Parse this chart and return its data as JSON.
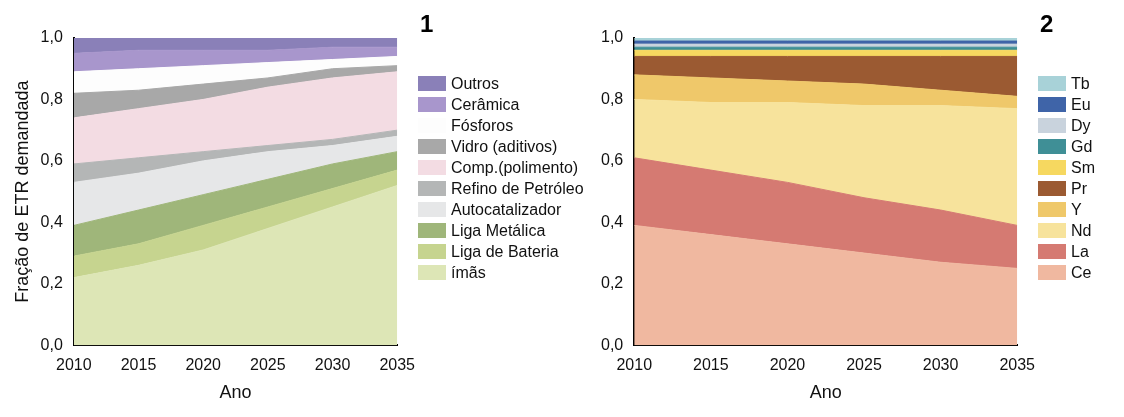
{
  "chart_data": [
    {
      "type": "area",
      "title": "1",
      "xlabel": "Ano",
      "ylabel": "Fração de ETR demandada",
      "stacked": true,
      "legend": "right",
      "grid": false,
      "x": [
        2010,
        2015,
        2020,
        2025,
        2030,
        2035
      ],
      "xlim": [
        2010,
        2035
      ],
      "xticks": [
        2010,
        2015,
        2020,
        2025,
        2030,
        2035
      ],
      "ylim": [
        0,
        1
      ],
      "yticks": [
        {
          "value": 0,
          "label": "0,0"
        },
        {
          "value": 0.2,
          "label": "0,2"
        },
        {
          "value": 0.4,
          "label": "0,4"
        },
        {
          "value": 0.6,
          "label": "0,6"
        },
        {
          "value": 0.8,
          "label": "0,8"
        },
        {
          "value": 1,
          "label": "1,0"
        }
      ],
      "series": [
        {
          "name": "ímãs",
          "color": "#dde6b6",
          "values": [
            0.22,
            0.26,
            0.31,
            0.38,
            0.45,
            0.52
          ]
        },
        {
          "name": "Liga de Bateria",
          "color": "#c6d48f",
          "values": [
            0.07,
            0.07,
            0.08,
            0.07,
            0.06,
            0.05
          ]
        },
        {
          "name": "Liga Metálica",
          "color": "#9fb67a",
          "values": [
            0.1,
            0.11,
            0.1,
            0.09,
            0.08,
            0.06
          ]
        },
        {
          "name": "Autocatalizador",
          "color": "#e6e7e8",
          "values": [
            0.14,
            0.12,
            0.11,
            0.09,
            0.06,
            0.05
          ]
        },
        {
          "name": "Refino de Petróleo",
          "color": "#b4b6b6",
          "values": [
            0.06,
            0.05,
            0.03,
            0.02,
            0.02,
            0.02
          ]
        },
        {
          "name": "Comp.(polimento)",
          "color": "#f3dce3",
          "values": [
            0.15,
            0.16,
            0.17,
            0.19,
            0.2,
            0.19
          ]
        },
        {
          "name": "Vidro (aditivos)",
          "color": "#a8a8a8",
          "values": [
            0.08,
            0.06,
            0.05,
            0.03,
            0.03,
            0.02
          ]
        },
        {
          "name": "Fósforos",
          "color": "#fdfdfd",
          "values": [
            0.07,
            0.07,
            0.06,
            0.05,
            0.03,
            0.03
          ]
        },
        {
          "name": "Cerâmica",
          "color": "#a896cc",
          "values": [
            0.06,
            0.06,
            0.05,
            0.04,
            0.04,
            0.03
          ]
        },
        {
          "name": "Outros",
          "color": "#8a80b8",
          "values": [
            0.05,
            0.04,
            0.04,
            0.04,
            0.03,
            0.03
          ]
        }
      ]
    },
    {
      "type": "area",
      "title": "2",
      "xlabel": "Ano",
      "stacked": true,
      "legend": "right",
      "grid": false,
      "x": [
        2010,
        2015,
        2020,
        2025,
        2030,
        2035
      ],
      "xlim": [
        2010,
        2035
      ],
      "xticks": [
        2010,
        2015,
        2020,
        2025,
        2030,
        2035
      ],
      "ylim": [
        0,
        1
      ],
      "yticks": [
        {
          "value": 0,
          "label": "0,0"
        },
        {
          "value": 0.2,
          "label": "0,2"
        },
        {
          "value": 0.4,
          "label": "0,4"
        },
        {
          "value": 0.6,
          "label": "0,6"
        },
        {
          "value": 0.8,
          "label": "0,8"
        },
        {
          "value": 1,
          "label": "1,0"
        }
      ],
      "series": [
        {
          "name": "Ce",
          "color": "#f0b8a0",
          "values": [
            0.39,
            0.36,
            0.33,
            0.3,
            0.27,
            0.25
          ]
        },
        {
          "name": "La",
          "color": "#d57a72",
          "values": [
            0.22,
            0.21,
            0.2,
            0.18,
            0.17,
            0.14
          ]
        },
        {
          "name": "Nd",
          "color": "#f7e39c",
          "values": [
            0.19,
            0.22,
            0.26,
            0.3,
            0.34,
            0.38
          ]
        },
        {
          "name": "Y",
          "color": "#efc86a",
          "values": [
            0.08,
            0.08,
            0.07,
            0.07,
            0.05,
            0.04
          ]
        },
        {
          "name": "Pr",
          "color": "#9b5a32",
          "values": [
            0.06,
            0.07,
            0.08,
            0.09,
            0.11,
            0.13
          ]
        },
        {
          "name": "Sm",
          "color": "#f6d860",
          "values": [
            0.02,
            0.02,
            0.02,
            0.02,
            0.02,
            0.02
          ]
        },
        {
          "name": "Gd",
          "color": "#3f8f96",
          "values": [
            0.01,
            0.01,
            0.01,
            0.01,
            0.01,
            0.01
          ]
        },
        {
          "name": "Dy",
          "color": "#c9d3dd",
          "values": [
            0.01,
            0.01,
            0.01,
            0.01,
            0.01,
            0.01
          ]
        },
        {
          "name": "Eu",
          "color": "#3f64a8",
          "values": [
            0.01,
            0.01,
            0.01,
            0.01,
            0.01,
            0.01
          ]
        },
        {
          "name": "Tb",
          "color": "#a8d2d8",
          "values": [
            0.01,
            0.01,
            0.01,
            0.01,
            0.01,
            0.01
          ]
        }
      ]
    }
  ]
}
